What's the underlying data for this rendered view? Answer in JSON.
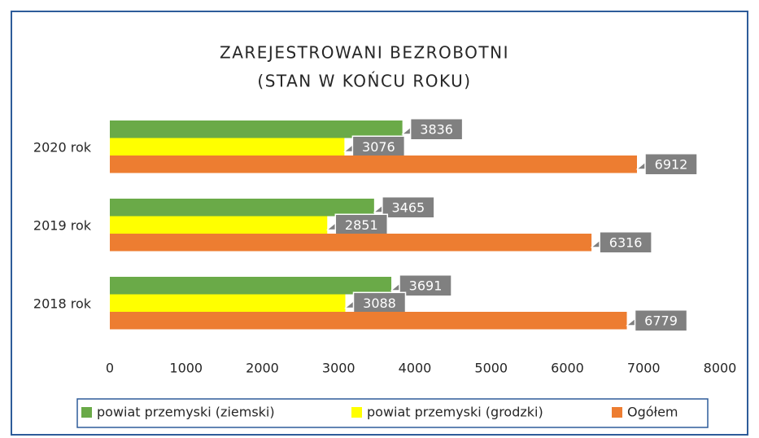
{
  "chart_data": {
    "type": "bar",
    "orientation": "horizontal",
    "title": "ZAREJESTROWANI BEZROBOTNI",
    "subtitle": "(STAN W KOŃCU ROKU)",
    "categories": [
      "2020 rok",
      "2019 rok",
      "2018 rok"
    ],
    "series": [
      {
        "name": "powiat przemyski (ziemski)",
        "color": "#6aaa48",
        "values": [
          3836,
          3465,
          3691
        ]
      },
      {
        "name": "powiat przemyski (grodzki)",
        "color": "#ffff00",
        "values": [
          3076,
          2851,
          3088
        ]
      },
      {
        "name": "Ogółem",
        "color": "#ed7d31",
        "values": [
          6912,
          6316,
          6779
        ]
      }
    ],
    "xlim": [
      0,
      8000
    ],
    "xticks": [
      0,
      1000,
      2000,
      3000,
      4000,
      5000,
      6000,
      7000,
      8000
    ],
    "grid": false,
    "legend": "bottom"
  }
}
